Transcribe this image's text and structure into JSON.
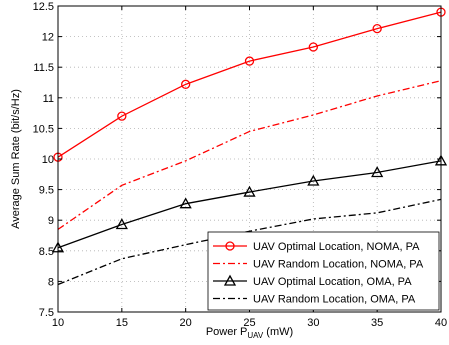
{
  "chart_data": {
    "type": "line",
    "xlabel": "Power P",
    "xlabel_sub": "UAV",
    "xlabel_unit": " (mW)",
    "ylabel": "Average Sum Rate (bit/s/Hz)",
    "xlim": [
      10,
      40
    ],
    "ylim": [
      7.5,
      12.5
    ],
    "xticks": [
      10,
      15,
      20,
      25,
      30,
      35,
      40
    ],
    "yticks": [
      7.5,
      8,
      8.5,
      9,
      9.5,
      10,
      10.5,
      11,
      11.5,
      12,
      12.5
    ],
    "xtick_labels": [
      "10",
      "15",
      "20",
      "25",
      "30",
      "35",
      "40"
    ],
    "ytick_labels": [
      "7.5",
      "8",
      "8.5",
      "9",
      "9.5",
      "10",
      "10.5",
      "11",
      "11.5",
      "12",
      "12.5"
    ],
    "grid": true,
    "legend_position": "bottom-right",
    "x": [
      10,
      15,
      20,
      25,
      30,
      35,
      40
    ],
    "series": [
      {
        "name": "UAV Optimal Location, NOMA, PA",
        "values": [
          10.03,
          10.7,
          11.22,
          11.6,
          11.83,
          12.13,
          12.4
        ],
        "color": "#ff0000",
        "line_style": "solid",
        "marker": "circle"
      },
      {
        "name": "UAV Random Location, NOMA, PA",
        "values": [
          8.85,
          9.57,
          9.97,
          10.45,
          10.72,
          11.03,
          11.28
        ],
        "color": "#ff0000",
        "line_style": "dash-dot",
        "marker": "none"
      },
      {
        "name": "UAV Optimal Location, OMA, PA",
        "values": [
          8.55,
          8.93,
          9.27,
          9.46,
          9.64,
          9.78,
          9.97
        ],
        "color": "#000000",
        "line_style": "solid",
        "marker": "triangle"
      },
      {
        "name": "UAV Random Location, OMA, PA",
        "values": [
          7.95,
          8.37,
          8.6,
          8.82,
          9.02,
          9.12,
          9.34
        ],
        "color": "#000000",
        "line_style": "dash-dot",
        "marker": "none"
      }
    ]
  }
}
